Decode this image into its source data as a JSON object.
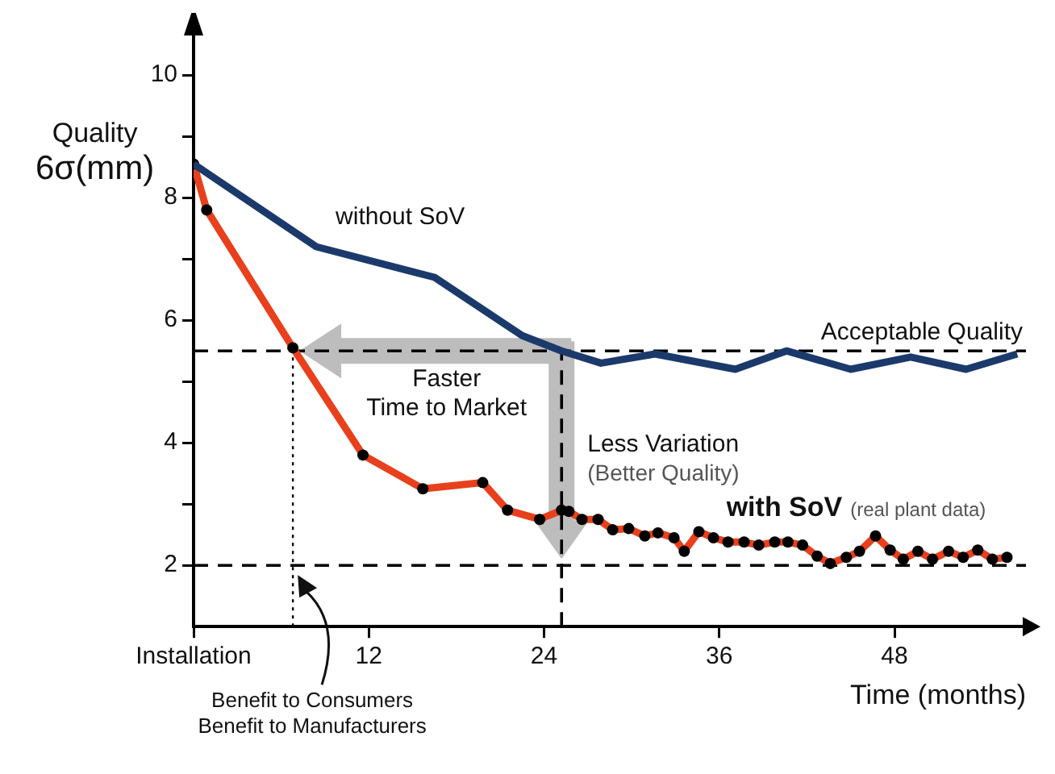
{
  "chart_data": {
    "type": "line",
    "xlabel": "Time (months)",
    "ylabel": "Quality\n6σ(mm)",
    "xlim": [
      0,
      57
    ],
    "ylim": [
      1,
      10.7
    ],
    "xticks": [
      {
        "value": 0,
        "label": "Installation"
      },
      12,
      24,
      36,
      48
    ],
    "yticks": [
      2,
      {
        "value": 3,
        "label": null
      },
      4,
      {
        "value": 5,
        "label": null
      },
      6,
      {
        "value": 7,
        "label": null
      },
      8,
      {
        "value": 9,
        "label": null
      },
      10
    ],
    "grid": false,
    "legend": false,
    "series": [
      {
        "name": "without SoV",
        "color": "#1b3a6b",
        "marker": "none",
        "x": [
          0,
          8.4,
          16.5,
          22.5,
          25.2,
          27.9,
          31.6,
          37.1,
          40.6,
          45,
          49.1,
          52.9,
          56.4
        ],
        "values": [
          8.55,
          7.2,
          6.7,
          5.75,
          5.5,
          5.3,
          5.45,
          5.2,
          5.5,
          5.2,
          5.4,
          5.2,
          5.45
        ]
      },
      {
        "name": "with SoV",
        "color": "#e8401c",
        "marker": "circle",
        "x": [
          0,
          0.9,
          6.8,
          11.6,
          15.7,
          19.8,
          21.5,
          23.7,
          25.2,
          25.7,
          26.6,
          27.7,
          28.7,
          29.8,
          30.9,
          31.8,
          32.9,
          33.6,
          34.6,
          35.6,
          36.6,
          37.7,
          38.7,
          39.8,
          40.7,
          41.7,
          42.7,
          43.6,
          44.7,
          45.6,
          46.7,
          47.7,
          48.6,
          49.6,
          50.6,
          51.7,
          52.7,
          53.7,
          54.7,
          55.7
        ],
        "values": [
          8.55,
          7.8,
          5.55,
          3.8,
          3.25,
          3.35,
          2.9,
          2.75,
          2.9,
          2.88,
          2.75,
          2.75,
          2.58,
          2.6,
          2.48,
          2.53,
          2.45,
          2.23,
          2.55,
          2.45,
          2.38,
          2.38,
          2.33,
          2.38,
          2.38,
          2.33,
          2.15,
          2.03,
          2.13,
          2.23,
          2.48,
          2.25,
          2.1,
          2.23,
          2.1,
          2.23,
          2.13,
          2.25,
          2.1,
          2.13
        ]
      }
    ],
    "ref_lines": [
      {
        "axis": "y",
        "value": 5.5,
        "label": "Acceptable Quality",
        "line_style": "dashed",
        "color": "#000000"
      },
      {
        "axis": "y",
        "value": 2,
        "label": null,
        "line_style": "dashed",
        "color": "#000000"
      },
      {
        "axis": "x",
        "value": 6.8,
        "label": null,
        "line_style": "dotted",
        "color": "#000000"
      },
      {
        "axis": "x",
        "value": 25.2,
        "label": null,
        "line_style": "dashed",
        "color": "#000000"
      }
    ],
    "annotations": [
      "Faster\nTime to Market",
      "Less Variation\n(Better Quality)",
      "Benefit to Consumers",
      "Benefit to Manufacturers",
      "(real plant data)"
    ]
  }
}
